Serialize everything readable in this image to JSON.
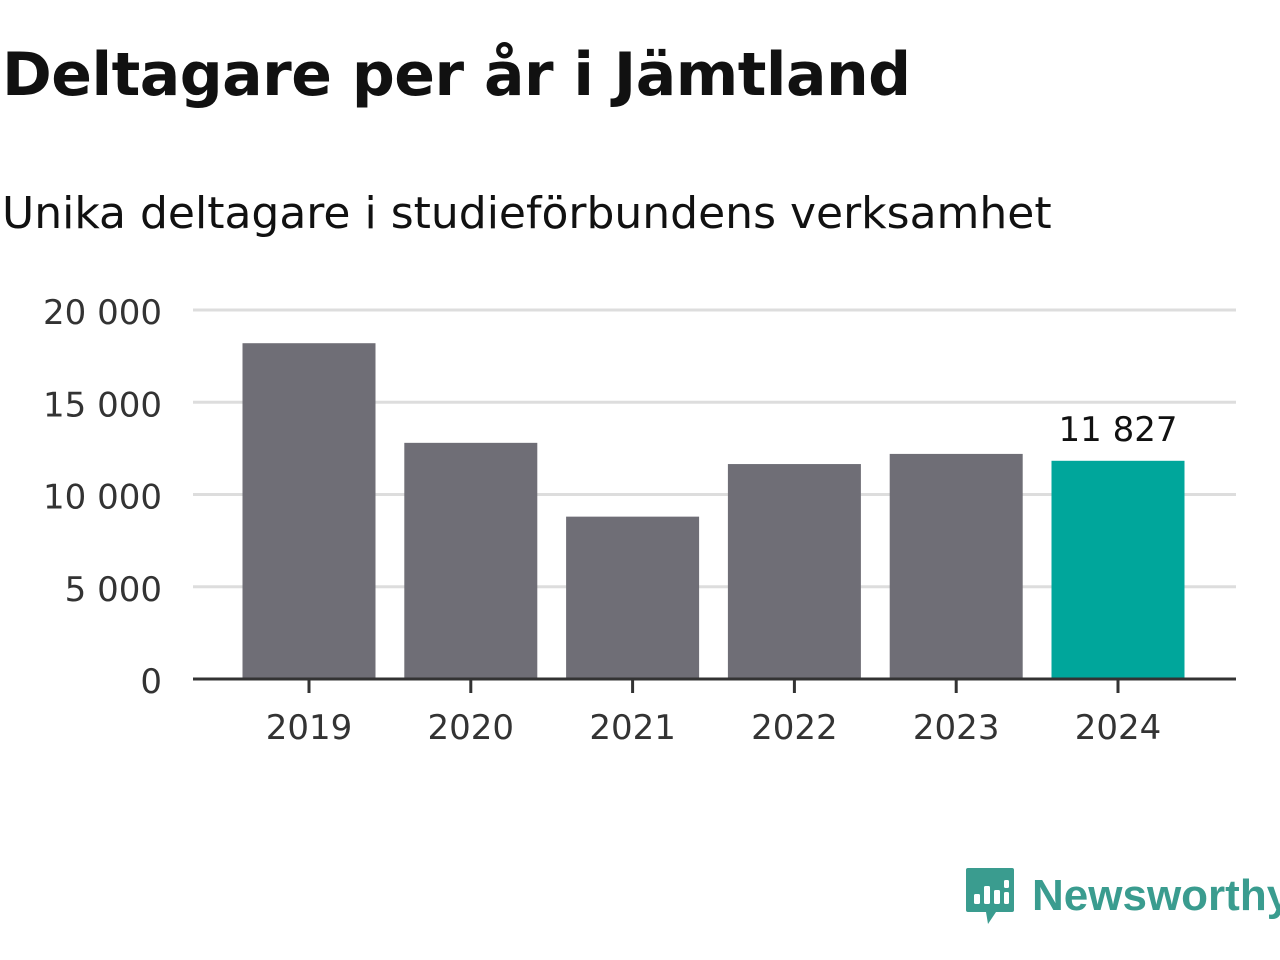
{
  "title": "Deltagare per år i Jämtland",
  "subtitle": "Unika deltagare i studieförbundens verksamhet",
  "brand": {
    "name": "Newsworthy",
    "icon": "bar-chart-speech-bubble-icon"
  },
  "colors": {
    "bar_default": "#6f6e76",
    "bar_highlight": "#00a69b",
    "gridline": "#dddddd",
    "axis": "#333333",
    "brand": "#3a9c8f"
  },
  "chart_data": {
    "type": "bar",
    "title": "Deltagare per år i Jämtland",
    "subtitle": "Unika deltagare i studieförbundens verksamhet",
    "categories": [
      "2019",
      "2020",
      "2021",
      "2022",
      "2023",
      "2024"
    ],
    "values": [
      18200,
      12800,
      8800,
      11650,
      12200,
      11827
    ],
    "highlight_index": 5,
    "data_labels": [
      {
        "index": 5,
        "text": "11 827"
      }
    ],
    "ylim": [
      0,
      20000
    ],
    "yticks": [
      0,
      5000,
      10000,
      15000,
      20000
    ],
    "ytick_labels": [
      "0",
      "5 000",
      "10 000",
      "15 000",
      "20 000"
    ],
    "grid": true,
    "xlabel": "",
    "ylabel": ""
  }
}
